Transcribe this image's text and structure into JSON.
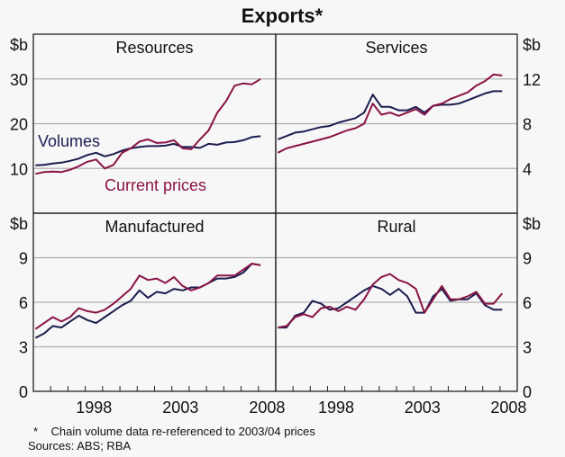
{
  "chart_data": {
    "type": "line",
    "title": "Exports*",
    "footnote": "*    Chain volume data re-referenced to 2003/04 prices",
    "sources": "Sources: ABS; RBA",
    "colors": {
      "volumes": "#1b1d4f",
      "current_prices": "#8a1446"
    },
    "x": [
      1995.125,
      1995.625,
      1996.125,
      1996.625,
      1997.125,
      1997.625,
      1998.125,
      1998.625,
      1999.125,
      1999.625,
      2000.125,
      2000.625,
      2001.125,
      2001.625,
      2002.125,
      2002.625,
      2003.125,
      2003.625,
      2004.125,
      2004.625,
      2005.125,
      2005.625,
      2006.125,
      2006.625,
      2007.125,
      2007.625,
      2008.125
    ],
    "xlim": [
      1995,
      2009
    ],
    "x_ticks": [
      "1998",
      "2003",
      "2008"
    ],
    "grid": true,
    "panels": [
      {
        "title": "Resources",
        "unit": "$b",
        "axis_side": "left",
        "ylim": [
          0,
          40
        ],
        "y_ticks": [
          "10",
          "20",
          "30"
        ],
        "annotations": {
          "volumes": "Volumes",
          "current_prices": "Current prices"
        },
        "series": [
          {
            "name": "Volumes",
            "values": [
              10.7,
              10.8,
              11.1,
              11.3,
              11.7,
              12.2,
              13.0,
              13.5,
              12.7,
              13.2,
              14.0,
              14.5,
              14.8,
              15.0,
              15.0,
              15.1,
              15.5,
              14.8,
              14.8,
              14.6,
              15.5,
              15.3,
              15.8,
              15.9,
              16.3,
              17.0,
              17.2
            ]
          },
          {
            "name": "Current prices",
            "values": [
              8.8,
              9.2,
              9.3,
              9.2,
              9.7,
              10.5,
              11.5,
              12.0,
              10.0,
              10.8,
              13.5,
              14.5,
              16.0,
              16.5,
              15.7,
              15.8,
              16.3,
              14.5,
              14.3,
              16.5,
              18.5,
              22.5,
              25.0,
              28.5,
              29.0,
              28.8,
              30.0
            ]
          }
        ]
      },
      {
        "title": "Services",
        "unit": "$b",
        "axis_side": "right",
        "ylim": [
          0,
          16
        ],
        "y_ticks": [
          "4",
          "8",
          "12"
        ],
        "series": [
          {
            "name": "Volumes",
            "values": [
              6.6,
              6.9,
              7.2,
              7.3,
              7.5,
              7.7,
              7.8,
              8.1,
              8.3,
              8.5,
              9.0,
              10.6,
              9.5,
              9.5,
              9.2,
              9.2,
              9.5,
              9.0,
              9.6,
              9.7,
              9.7,
              9.8,
              10.1,
              10.4,
              10.7,
              10.9,
              10.9
            ]
          },
          {
            "name": "Current prices",
            "values": [
              5.4,
              5.8,
              6.0,
              6.2,
              6.4,
              6.6,
              6.8,
              7.1,
              7.4,
              7.6,
              8.0,
              9.8,
              8.8,
              9.0,
              8.7,
              9.0,
              9.3,
              8.8,
              9.6,
              9.8,
              10.2,
              10.5,
              10.8,
              11.4,
              11.8,
              12.4,
              12.3
            ]
          }
        ]
      },
      {
        "title": "Manufactured",
        "unit": "$b",
        "axis_side": "left",
        "ylim": [
          0,
          12
        ],
        "y_ticks": [
          "0",
          "3",
          "6",
          "9"
        ],
        "series": [
          {
            "name": "Volumes",
            "values": [
              3.6,
              3.9,
              4.4,
              4.3,
              4.7,
              5.1,
              4.8,
              4.6,
              5.0,
              5.4,
              5.8,
              6.1,
              6.8,
              6.3,
              6.7,
              6.6,
              6.9,
              6.8,
              7.0,
              7.0,
              7.3,
              7.6,
              7.6,
              7.7,
              8.0,
              8.6,
              8.5
            ]
          },
          {
            "name": "Current prices",
            "values": [
              4.2,
              4.6,
              5.0,
              4.7,
              5.0,
              5.6,
              5.4,
              5.3,
              5.5,
              5.9,
              6.4,
              6.9,
              7.8,
              7.5,
              7.6,
              7.3,
              7.7,
              7.1,
              6.8,
              7.0,
              7.3,
              7.8,
              7.8,
              7.8,
              8.2,
              8.6,
              8.5
            ]
          }
        ]
      },
      {
        "title": "Rural",
        "unit": "$b",
        "axis_side": "right",
        "ylim": [
          0,
          12
        ],
        "y_ticks": [
          "0",
          "3",
          "6",
          "9"
        ],
        "series": [
          {
            "name": "Volumes",
            "values": [
              4.3,
              4.3,
              5.1,
              5.3,
              6.1,
              5.9,
              5.5,
              5.6,
              6.0,
              6.4,
              6.8,
              7.1,
              6.9,
              6.5,
              6.9,
              6.4,
              5.3,
              5.3,
              6.4,
              6.9,
              6.1,
              6.2,
              6.2,
              6.6,
              5.8,
              5.5,
              5.5
            ]
          },
          {
            "name": "Current prices",
            "values": [
              4.3,
              4.4,
              5.0,
              5.2,
              5.0,
              5.6,
              5.7,
              5.4,
              5.7,
              5.5,
              6.2,
              7.2,
              7.7,
              7.9,
              7.5,
              7.3,
              6.9,
              5.3,
              6.2,
              7.1,
              6.2,
              6.2,
              6.4,
              6.7,
              5.9,
              5.9,
              6.6
            ]
          }
        ]
      }
    ]
  }
}
